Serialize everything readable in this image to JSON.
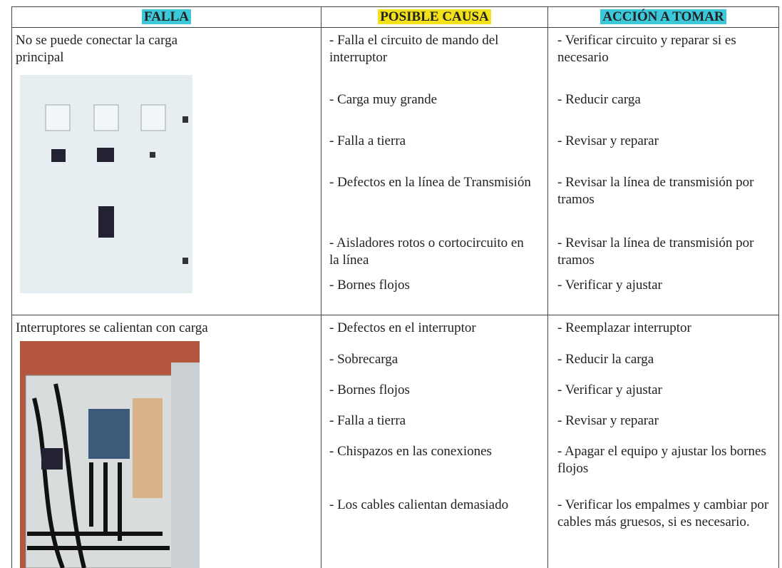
{
  "table": {
    "headers": [
      "FALLA",
      "POSIBLE CAUSA",
      "ACCIÓN A TOMAR"
    ],
    "rows": [
      {
        "falla": "No se puede conectar la carga principal",
        "items": [
          {
            "causa": "- Falla el circuito de mando del interruptor",
            "accion": "- Verificar circuito y reparar si es necesario"
          },
          {
            "causa": "- Carga muy grande",
            "accion": "- Reducir carga"
          },
          {
            "causa": "- Falla a tierra",
            "accion": "- Revisar y reparar"
          },
          {
            "causa": "- Defectos en la línea de Transmisión",
            "accion": "- Revisar la línea de transmisión por tramos"
          },
          {
            "causa": "- Aisladores rotos o cortocircuito en la línea",
            "accion": "- Revisar la línea de transmisión por tramos"
          },
          {
            "causa": "- Bornes flojos",
            "accion": "- Verificar y ajustar"
          }
        ]
      },
      {
        "falla": "Interruptores se calientan con carga",
        "items": [
          {
            "causa": "- Defectos en el interruptor",
            "accion": "- Reemplazar interruptor"
          },
          {
            "causa": "- Sobrecarga",
            "accion": "- Reducir la carga"
          },
          {
            "causa": "- Bornes flojos",
            "accion": "- Verificar y ajustar"
          },
          {
            "causa": "- Falla a tierra",
            "accion": "- Revisar y reparar"
          },
          {
            "causa": "- Chispazos en las conexiones",
            "accion": "- Apagar el equipo y ajustar los bornes flojos"
          },
          {
            "causa": "- Los cables calientan demasiado",
            "accion": "- Verificar los empalmes y cambiar por cables más gruesos, si es necesario."
          }
        ]
      }
    ]
  }
}
